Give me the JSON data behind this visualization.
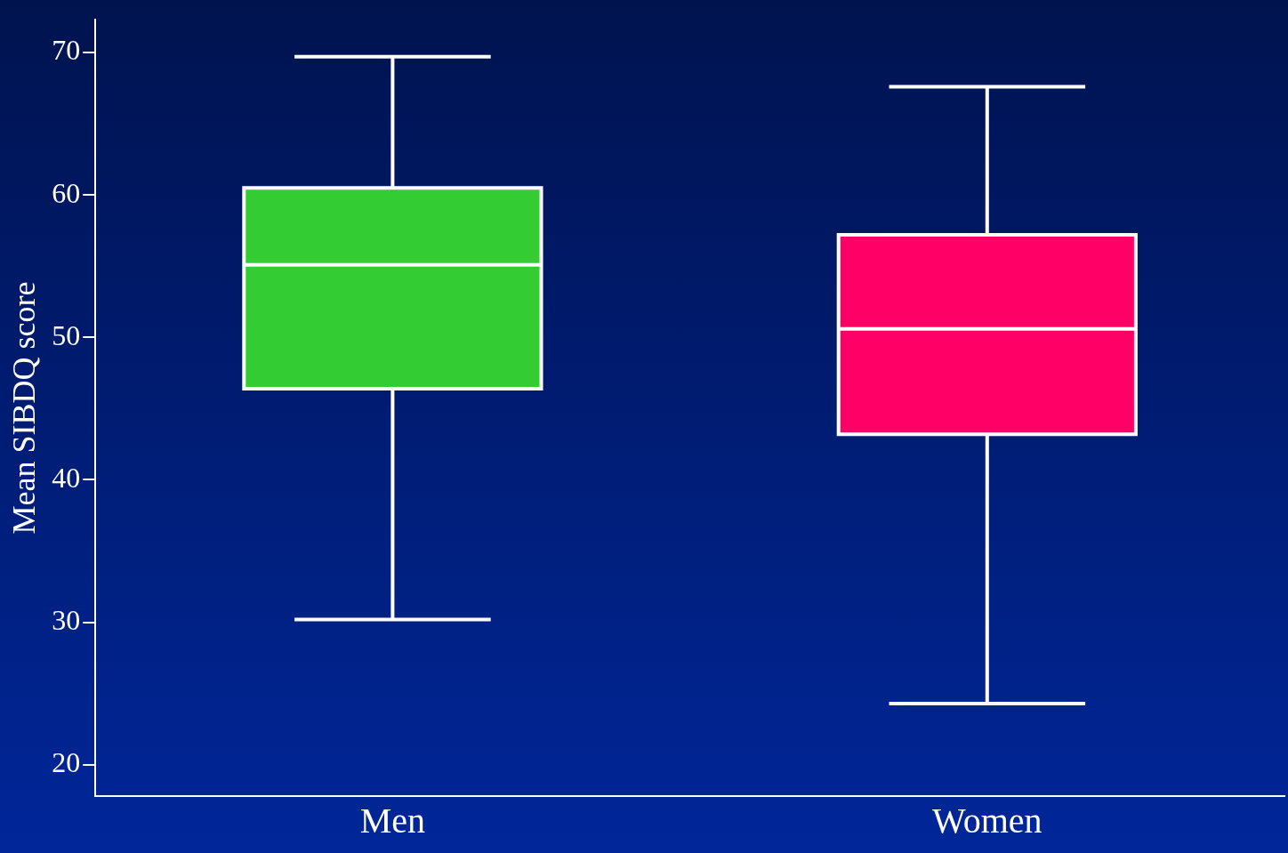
{
  "chart_data": {
    "type": "box",
    "ylabel": "Mean SIBDQ score",
    "categories": [
      "Men",
      "Women"
    ],
    "colors": [
      "#33cc33",
      "#ff0066"
    ],
    "boxes": [
      {
        "low": 30.2,
        "q1": 46.4,
        "median": 55.1,
        "q3": 60.5,
        "high": 69.7
      },
      {
        "low": 24.3,
        "q1": 43.2,
        "median": 50.6,
        "q3": 57.2,
        "high": 67.6
      }
    ],
    "ylim": [
      17.8,
      72.3
    ],
    "yticks": [
      20,
      30,
      40,
      50,
      60,
      70
    ]
  }
}
